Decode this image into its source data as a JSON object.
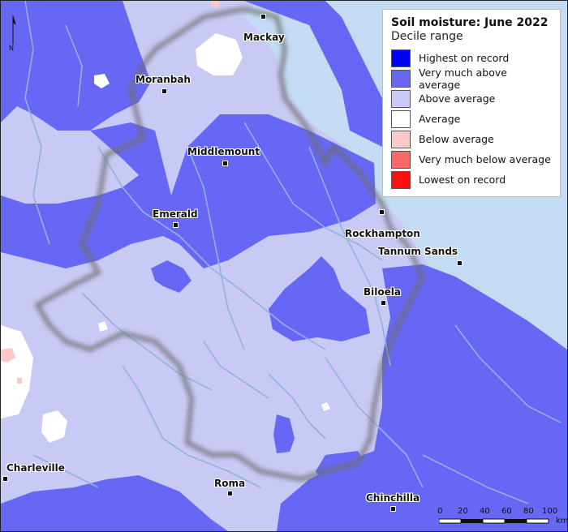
{
  "legend": {
    "title": "Soil moisture: June 2022",
    "subtitle": "Decile range",
    "items": [
      {
        "label": "Highest on record",
        "color": "#0000ff"
      },
      {
        "label": "Very much above average",
        "color": "#6767f5"
      },
      {
        "label": "Above average",
        "color": "#c9c9f5"
      },
      {
        "label": "Average",
        "color": "#ffffff"
      },
      {
        "label": "Below average",
        "color": "#fcc9c9"
      },
      {
        "label": "Very much below average",
        "color": "#fc6767"
      },
      {
        "label": "Lowest on record",
        "color": "#ff1010"
      }
    ]
  },
  "towns": {
    "mackay": "Mackay",
    "moranbah": "Moranbah",
    "middlemount": "Middlemount",
    "emerald": "Emerald",
    "rockhampton": "Rockhampton",
    "tannum_sands": "Tannum Sands",
    "biloela": "Biloela",
    "charleville": "Charleville",
    "roma": "Roma",
    "chinchilla": "Chinchilla"
  },
  "north_arrow": {
    "label": "N"
  },
  "scale_bar": {
    "ticks": [
      "0",
      "20",
      "40",
      "60",
      "80",
      "100"
    ],
    "unit": "km"
  },
  "colors": {
    "ocean": "#c3dcf3",
    "river": "#8fb3dc",
    "boundary_shadow": "#6d6d6d"
  }
}
